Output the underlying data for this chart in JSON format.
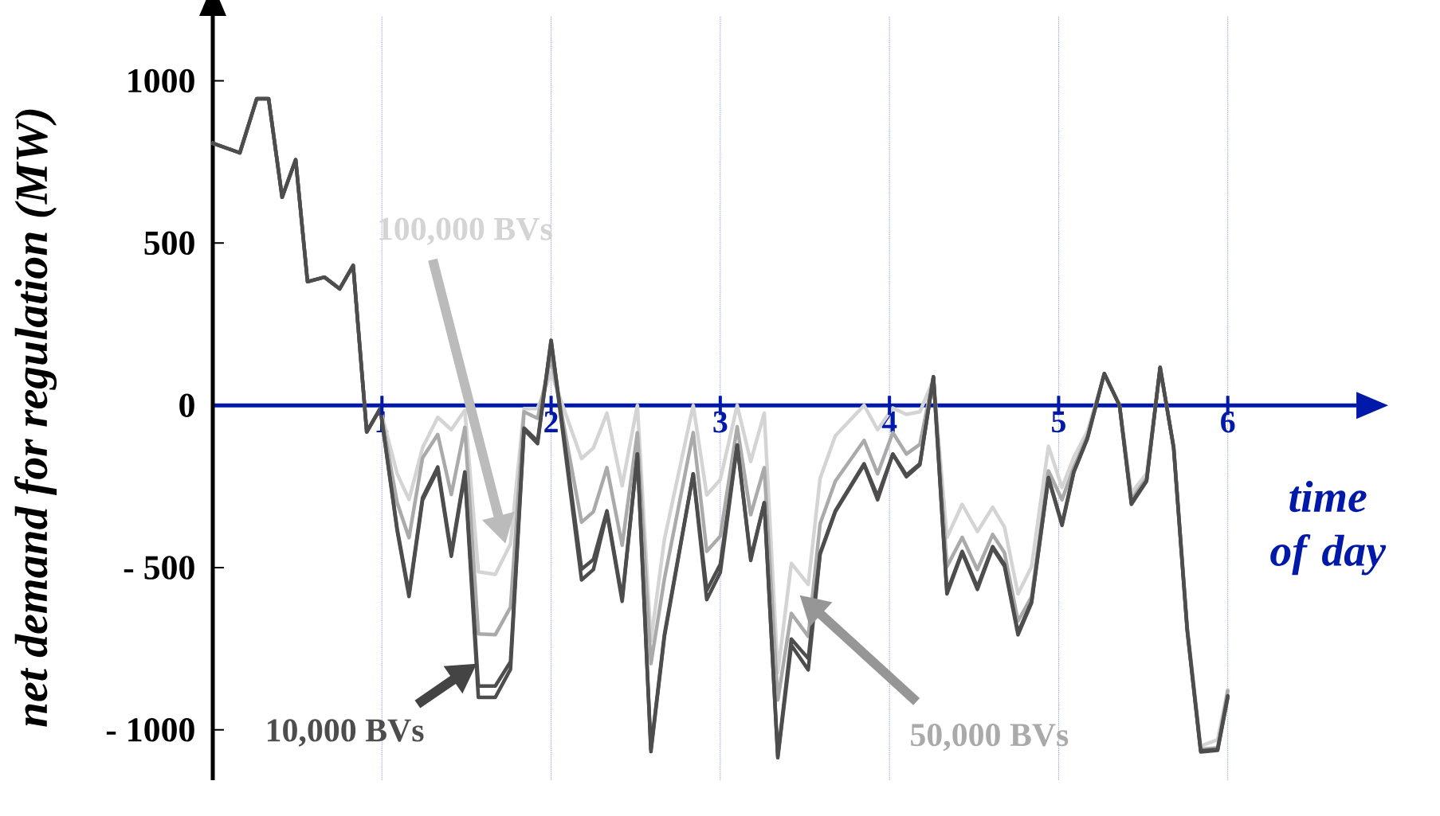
{
  "chart_data": {
    "type": "line",
    "xlabel": "time of day",
    "ylabel": "net demand for regulation (MW)",
    "x": [
      0,
      0.16,
      0.26,
      0.33,
      0.41,
      0.49,
      0.56,
      0.66,
      0.75,
      0.83,
      0.91,
      0.99,
      1.09,
      1.16,
      1.24,
      1.33,
      1.41,
      1.49,
      1.57,
      1.67,
      1.76,
      1.84,
      1.92,
      2.0,
      2.18,
      2.25,
      2.33,
      2.42,
      2.51,
      2.59,
      2.67,
      2.84,
      2.92,
      3.0,
      3.1,
      3.18,
      3.26,
      3.34,
      3.42,
      3.52,
      3.59,
      3.68,
      3.85,
      3.93,
      4.02,
      4.1,
      4.18,
      4.26,
      4.34,
      4.43,
      4.52,
      4.61,
      4.68,
      4.76,
      4.84,
      4.94,
      5.02,
      5.09,
      5.17,
      5.27,
      5.36,
      5.43,
      5.52,
      5.6,
      5.68,
      5.76,
      5.84,
      5.94,
      6.0
    ],
    "series": [
      {
        "color": "#4d4d4d",
        "values": [
          808,
          778,
          945,
          945,
          641,
          757,
          381,
          395,
          359,
          431,
          -82,
          -10,
          -386,
          -589,
          -292,
          -198,
          -465,
          -212,
          -900,
          -900,
          -813,
          -75,
          -118,
          200,
          -538,
          -506,
          -332,
          -604,
          -150,
          -1067,
          -712,
          -211,
          -599,
          -515,
          -122,
          -478,
          -300,
          -1086,
          -739,
          -815,
          -459,
          -328,
          -183,
          -291,
          -150,
          -220,
          -183,
          88,
          -581,
          -454,
          -567,
          -440,
          -496,
          -707,
          -609,
          -225,
          -370,
          -206,
          -103,
          98,
          0,
          -305,
          -234,
          117,
          -131,
          -693,
          -1068,
          -1063,
          -900
        ]
      },
      {
        "name": "10,000 BVs",
        "color": "#4d4d4d",
        "values": [
          808,
          778,
          945,
          945,
          641,
          757,
          381,
          395,
          359,
          431,
          -82,
          -10,
          -380,
          -580,
          -285,
          -190,
          -455,
          -205,
          -865,
          -865,
          -790,
          -70,
          -110,
          200,
          -505,
          -475,
          -325,
          -595,
          -150,
          -1060,
          -705,
          -211,
          -570,
          -490,
          -122,
          -470,
          -300,
          -1080,
          -720,
          -780,
          -455,
          -325,
          -180,
          -280,
          -150,
          -215,
          -180,
          88,
          -575,
          -450,
          -560,
          -435,
          -490,
          -700,
          -605,
          -222,
          -365,
          -204,
          -102,
          98,
          0,
          -300,
          -232,
          117,
          -130,
          -690,
          -1065,
          -1060,
          -895
        ]
      },
      {
        "name": "50,000 BVs",
        "color": "#aaaaaa",
        "values": [
          808,
          778,
          945,
          945,
          641,
          757,
          381,
          395,
          359,
          431,
          -82,
          -10,
          -300,
          -408,
          -162,
          -90,
          -275,
          -68,
          -704,
          -707,
          -622,
          -20,
          -40,
          150,
          -360,
          -328,
          -192,
          -431,
          -84,
          -796,
          -534,
          -84,
          -450,
          -403,
          -66,
          -337,
          -192,
          -908,
          -641,
          -712,
          -365,
          -234,
          -108,
          -211,
          -84,
          -150,
          -120,
          88,
          -497,
          -407,
          -506,
          -398,
          -454,
          -665,
          -590,
          -202,
          -291,
          -190,
          -95,
          98,
          0,
          -290,
          -225,
          117,
          -128,
          -685,
          -1060,
          -1055,
          -880
        ]
      },
      {
        "name": "100,000 BVs",
        "color": "#d4d4d4",
        "values": [
          808,
          778,
          945,
          945,
          641,
          757,
          381,
          395,
          359,
          431,
          -82,
          -10,
          -211,
          -290,
          -131,
          -37,
          -75,
          -15,
          -513,
          -521,
          -427,
          -10,
          -10,
          100,
          -164,
          -131,
          -24,
          -248,
          0,
          -725,
          -412,
          0,
          -276,
          -229,
          0,
          -173,
          -24,
          -824,
          -487,
          -552,
          -225,
          -94,
          0,
          -75,
          -8,
          -28,
          -20,
          80,
          -407,
          -305,
          -389,
          -314,
          -375,
          -581,
          -497,
          -126,
          -253,
          -160,
          -80,
          95,
          0,
          -270,
          -210,
          110,
          -125,
          -680,
          -1050,
          -1030,
          -876
        ]
      }
    ],
    "xlim": [
      0,
      6.76
    ],
    "ylim": [
      -1155,
      1200
    ],
    "xticks": [
      1,
      2,
      3,
      4,
      5,
      6
    ],
    "yticks": [
      {
        "value": -1000,
        "label": "- 1000"
      },
      {
        "value": -500,
        "label": "- 500"
      },
      0,
      500,
      1000
    ],
    "grid": "x"
  }
}
